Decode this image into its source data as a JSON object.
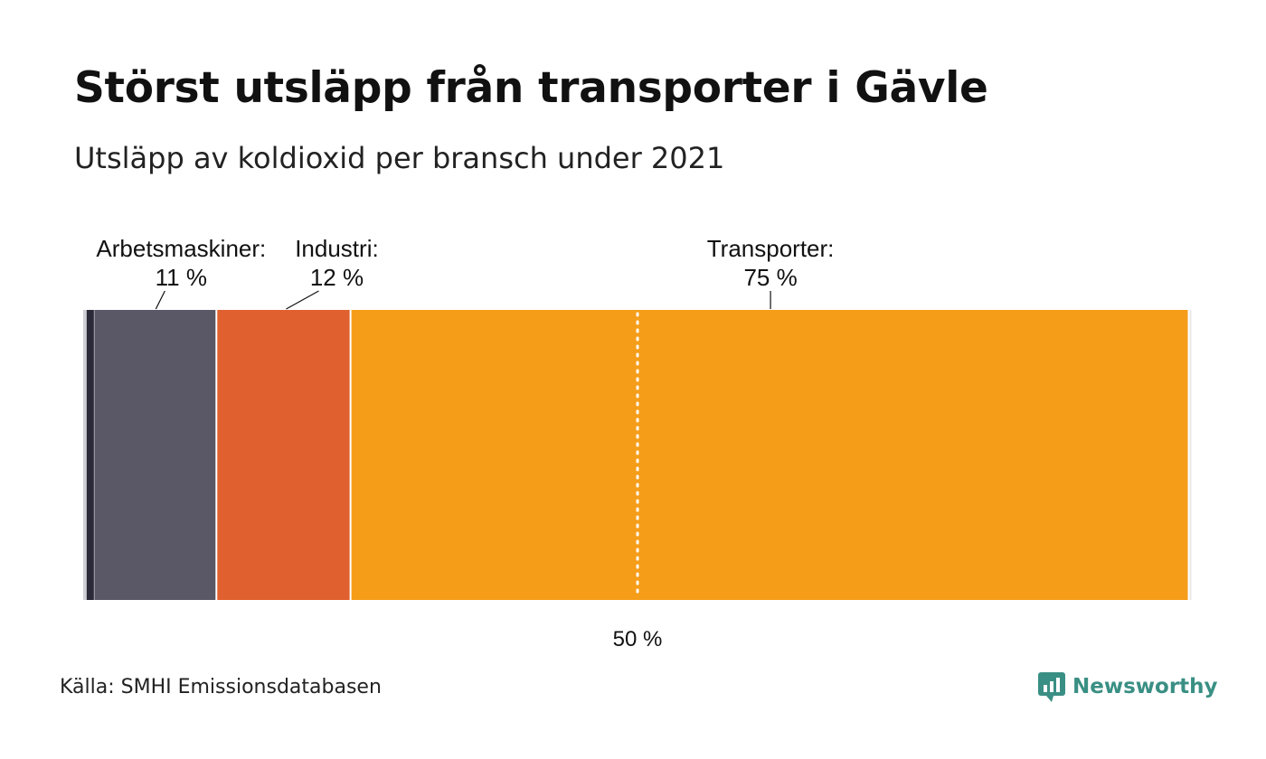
{
  "title": "Störst utsläpp från transporter i Gävle",
  "subtitle": "Utsläpp av koldioxid per bransch under 2021",
  "source": "Källa: SMHI Emissionsdatabasen",
  "brand": "Newsworthy",
  "colors": {
    "tiny1": "#cfcfd6",
    "tiny2": "#2b2a38",
    "arbetsmaskiner": "#5a5866",
    "industri": "#e0602f",
    "transporter": "#f59d19",
    "brand": "#3a8f84"
  },
  "chart_data": {
    "type": "bar",
    "orientation": "horizontal-stacked-100",
    "segments": [
      {
        "name": "",
        "value": 0.3,
        "color": "#cfcfd6",
        "label": null
      },
      {
        "name": "",
        "value": 0.7,
        "color": "#2b2a38",
        "label": null
      },
      {
        "name": "Arbetsmaskiner",
        "value": 11,
        "color": "#5a5866",
        "label": "Arbetsmaskiner:",
        "value_label": "11 %"
      },
      {
        "name": "Industri",
        "value": 12,
        "color": "#e0602f",
        "label": "Industri:",
        "value_label": "12 %"
      },
      {
        "name": "Transporter",
        "value": 75,
        "color": "#f59d19",
        "label": "Transporter:",
        "value_label": "75 %"
      },
      {
        "name": "",
        "value": 0.2,
        "color": "#e8e8e8",
        "label": null
      }
    ],
    "reference_line": {
      "value": 50,
      "label": "50 %"
    },
    "xlim": [
      0,
      100
    ]
  }
}
